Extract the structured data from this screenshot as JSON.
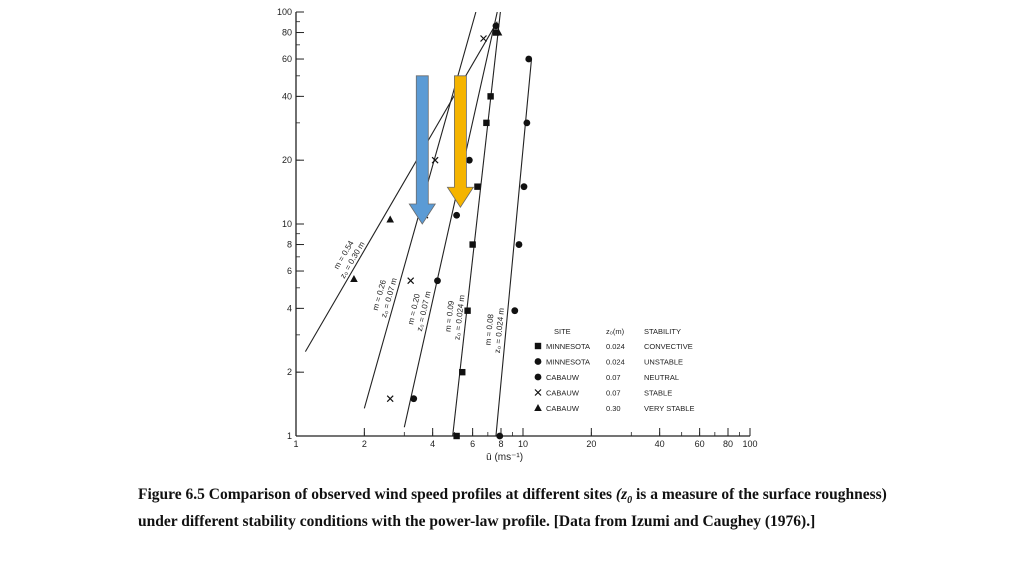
{
  "caption": {
    "before": "Figure 6.5 Comparison of observed wind speed profiles at different sites ",
    "italic": "(z",
    "italic_sub": "0",
    "after": " is a measure of the surface roughness) under different stability conditions with the power-law profile. [Data from Izumi and Caughey (1976).]"
  },
  "arrows": [
    {
      "name": "blue-arrow",
      "color": "#5b9bd5",
      "x_value": 3.6,
      "y_from": 50,
      "y_to": 10
    },
    {
      "name": "gold-arrow",
      "color": "#f5b400",
      "x_value": 5.3,
      "y_from": 50,
      "y_to": 12
    }
  ],
  "chart_data": {
    "type": "scatter",
    "title": "",
    "xlabel": "ū (ms⁻¹)",
    "ylabel": "",
    "xscale": "log",
    "yscale": "log",
    "xlim": [
      1,
      100
    ],
    "ylim": [
      1,
      100
    ],
    "x_ticks": [
      1,
      2,
      4,
      6,
      8,
      10,
      20,
      40,
      60,
      80,
      100
    ],
    "y_ticks": [
      1,
      2,
      4,
      6,
      8,
      10,
      20,
      40,
      60,
      80,
      100
    ],
    "grid": false,
    "legend_position": "bottom-right",
    "legend_headers": [
      "SITE",
      "z₀(m)",
      "STABILITY"
    ],
    "series": [
      {
        "name": "MINNESOTA",
        "z0": "0.024",
        "stability": "CONVECTIVE",
        "marker": "square",
        "points": [
          [
            5.1,
            1
          ],
          [
            5.4,
            2
          ],
          [
            5.7,
            3.9
          ],
          [
            6.0,
            8
          ],
          [
            6.3,
            15
          ],
          [
            6.9,
            30
          ],
          [
            7.2,
            40
          ],
          [
            7.6,
            80
          ]
        ]
      },
      {
        "name": "MINNESOTA",
        "z0": "0.024",
        "stability": "UNSTABLE",
        "marker": "circle",
        "points": [
          [
            7.9,
            1
          ],
          [
            9.2,
            3.9
          ],
          [
            9.6,
            8
          ],
          [
            10.1,
            15
          ],
          [
            10.4,
            30
          ],
          [
            10.6,
            60
          ]
        ]
      },
      {
        "name": "CABAUW",
        "z0": "0.07",
        "stability": "NEUTRAL",
        "marker": "circle",
        "points": [
          [
            3.3,
            1.5
          ],
          [
            4.2,
            5.4
          ],
          [
            5.1,
            11
          ],
          [
            5.8,
            20
          ],
          [
            7.6,
            86
          ]
        ]
      },
      {
        "name": "CABAUW",
        "z0": "0.07",
        "stability": "STABLE",
        "marker": "x",
        "points": [
          [
            2.6,
            1.5
          ],
          [
            3.2,
            5.4
          ],
          [
            3.7,
            11
          ],
          [
            4.1,
            20
          ],
          [
            6.7,
            75
          ]
        ]
      },
      {
        "name": "CABAUW",
        "z0": "0.30",
        "stability": "VERY STABLE",
        "marker": "triangle",
        "points": [
          [
            1.8,
            5.5
          ],
          [
            2.6,
            10.5
          ],
          [
            7.8,
            80
          ]
        ]
      }
    ],
    "fit_lines": [
      {
        "label_m": "m = 0.54",
        "label_z": "z₀ = 0.30 m",
        "from": [
          1.1,
          2.5
        ],
        "to": [
          7.7,
          90
        ]
      },
      {
        "label_m": "m = 0.26",
        "label_z": "z₀ = 0.07 m",
        "from": [
          2.0,
          1.35
        ],
        "to": [
          6.2,
          100
        ]
      },
      {
        "label_m": "m = 0.20",
        "label_z": "z₀ = 0.07 m",
        "from": [
          3.0,
          1.1
        ],
        "to": [
          7.7,
          100
        ]
      },
      {
        "label_m": "m = 0.09",
        "label_z": "z₀ = 0.024 m",
        "from": [
          4.9,
          1
        ],
        "to": [
          7.95,
          100
        ]
      },
      {
        "label_m": "m = 0.08",
        "label_z": "z₀ = 0.024 m",
        "from": [
          7.6,
          1
        ],
        "to": [
          10.9,
          60
        ]
      }
    ]
  }
}
